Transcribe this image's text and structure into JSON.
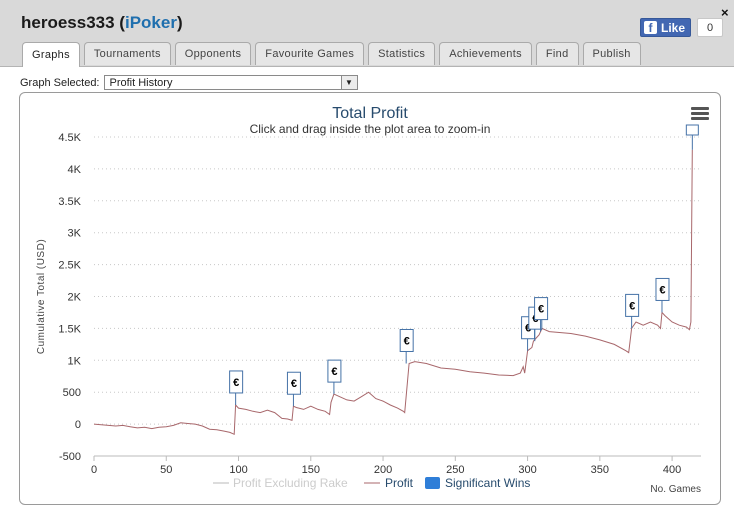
{
  "header": {
    "user": "heroess333",
    "site": "iPoker",
    "like_label": "Like",
    "like_count": "0",
    "close_glyph": "×"
  },
  "tabs": [
    "Graphs",
    "Tournaments",
    "Opponents",
    "Favourite Games",
    "Statistics",
    "Achievements",
    "Find",
    "Publish"
  ],
  "active_tab": "Graphs",
  "graph_select": {
    "label": "Graph Selected:",
    "value": "Profit History"
  },
  "chart_data": {
    "type": "line",
    "title": "Total Profit",
    "subtitle": "Click and drag inside the plot area to zoom-in",
    "ylabel": "Cumulative Total (USD)",
    "xlabel": "No. Games",
    "ylim": [
      -500,
      4500
    ],
    "xlim": [
      0,
      420
    ],
    "yticks": [
      -500,
      0,
      500,
      1000,
      1500,
      2000,
      2500,
      3000,
      3500,
      4000,
      4500
    ],
    "ytick_labels": [
      "-500",
      "0",
      "500",
      "1K",
      "1.5K",
      "2K",
      "2.5K",
      "3K",
      "3.5K",
      "4K",
      "4.5K"
    ],
    "xticks": [
      0,
      50,
      100,
      150,
      200,
      250,
      300,
      350,
      400
    ],
    "grid": true,
    "legend_position": "bottom-center",
    "colors": {
      "profit_ex_rake": "#dcdcdc",
      "profit": "#a8676b",
      "significant_wins": "#2f7ed8",
      "flag_border": "#4572a7"
    },
    "series": [
      {
        "name": "Profit Excluding Rake",
        "visible": false,
        "x": [],
        "y": []
      },
      {
        "name": "Profit",
        "x": [
          0,
          5,
          10,
          15,
          20,
          25,
          30,
          35,
          40,
          45,
          50,
          55,
          60,
          65,
          70,
          75,
          80,
          85,
          90,
          94,
          97,
          98,
          100,
          105,
          110,
          115,
          120,
          125,
          130,
          134,
          137,
          138,
          140,
          145,
          150,
          155,
          160,
          163,
          164,
          166,
          170,
          175,
          180,
          185,
          190,
          195,
          200,
          205,
          210,
          214,
          215,
          218,
          222,
          230,
          240,
          250,
          260,
          270,
          280,
          290,
          295,
          297,
          298,
          300,
          303,
          304,
          306,
          308,
          310,
          315,
          320,
          330,
          340,
          350,
          360,
          368,
          370,
          372,
          375,
          380,
          385,
          390,
          392,
          393,
          395,
          400,
          405,
          410,
          412,
          413,
          414
        ],
        "y": [
          0,
          -10,
          -20,
          -30,
          -20,
          -40,
          -60,
          -50,
          -70,
          -50,
          -40,
          -20,
          20,
          10,
          0,
          -30,
          -80,
          -90,
          -110,
          -130,
          -160,
          300,
          250,
          230,
          200,
          180,
          220,
          180,
          90,
          80,
          60,
          280,
          260,
          230,
          280,
          230,
          200,
          150,
          340,
          470,
          430,
          380,
          360,
          430,
          500,
          400,
          360,
          300,
          250,
          200,
          180,
          950,
          980,
          950,
          880,
          860,
          820,
          800,
          770,
          760,
          800,
          900,
          800,
          1150,
          1200,
          1300,
          1350,
          1400,
          1500,
          1450,
          1440,
          1420,
          1380,
          1320,
          1250,
          1150,
          1120,
          1500,
          1600,
          1550,
          1600,
          1550,
          1500,
          1750,
          1700,
          1600,
          1550,
          1520,
          1480,
          1600,
          4300
        ]
      }
    ],
    "significant_wins": [
      {
        "x": 98,
        "y": 300
      },
      {
        "x": 138,
        "y": 280
      },
      {
        "x": 166,
        "y": 470
      },
      {
        "x": 216,
        "y": 950
      },
      {
        "x": 300,
        "y": 1150
      },
      {
        "x": 305,
        "y": 1300
      },
      {
        "x": 309,
        "y": 1450
      },
      {
        "x": 372,
        "y": 1500
      },
      {
        "x": 393,
        "y": 1750
      },
      {
        "x": 414,
        "y": 4300
      }
    ],
    "flag_symbol": "€"
  }
}
